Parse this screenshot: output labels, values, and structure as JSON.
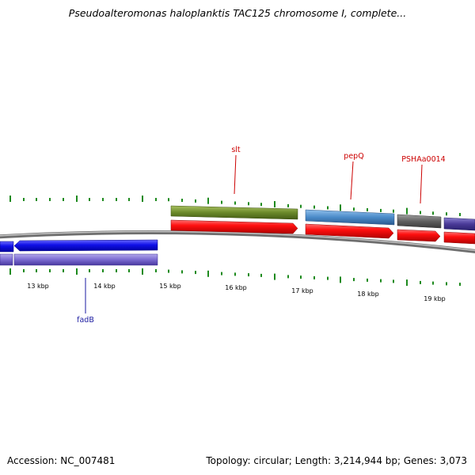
{
  "title": "Pseudoalteromonas haloplanktis TAC125 chromosome I, complete...",
  "footer": {
    "accession": "Accession: NC_007481",
    "summary": "Topology: circular; Length: 3,214,944 bp; Genes: 3,073"
  },
  "colors": {
    "backbone": "#8a8a8a",
    "tick": "#1e8a1e",
    "forward_label": "#cc0000",
    "reverse_label": "#1a1aa0"
  },
  "tick_labels": [
    "13 kbp",
    "14 kbp",
    "15 kbp",
    "16 kbp",
    "17 kbp",
    "18 kbp",
    "19 kbp"
  ],
  "gene_labels": {
    "slt": "slt",
    "pepq": "pepQ",
    "psha": "PSHAa0014",
    "fadb": "fadB"
  }
}
